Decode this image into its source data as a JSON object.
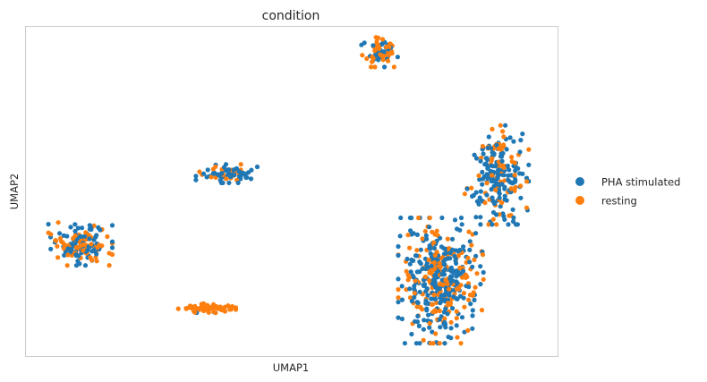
{
  "chart_data": {
    "type": "scatter",
    "title": "condition",
    "xlabel": "UMAP1",
    "ylabel": "UMAP2",
    "grid": false,
    "xlim": [
      0,
      100
    ],
    "ylim": [
      0,
      100
    ],
    "legend": {
      "placement": "right"
    },
    "series": [
      {
        "name": "PHA stimulated",
        "color": "#1f77b4"
      },
      {
        "name": "resting",
        "color": "#ff7f0e"
      }
    ],
    "clusters": [
      {
        "center": [
          10.3,
          34.1
        ],
        "spread": [
          6.0,
          6.5
        ],
        "count": 160,
        "stim_frac": 0.45
      },
      {
        "center": [
          37.8,
          55.4
        ],
        "spread": [
          5.8,
          2.8
        ],
        "count": 75,
        "stim_frac": 0.75
      },
      {
        "center": [
          34.0,
          14.5
        ],
        "spread": [
          5.5,
          1.6
        ],
        "count": 70,
        "stim_frac": 0.12
      },
      {
        "center": [
          66.5,
          92.3
        ],
        "spread": [
          3.4,
          4.6
        ],
        "count": 75,
        "stim_frac": 0.3
      },
      {
        "center": [
          88.5,
          55.0
        ],
        "spread": [
          6.0,
          15.0
        ],
        "count": 230,
        "stim_frac": 0.7
      },
      {
        "center": [
          78.0,
          23.0
        ],
        "spread": [
          8.0,
          19.0
        ],
        "count": 440,
        "stim_frac": 0.62
      }
    ]
  }
}
